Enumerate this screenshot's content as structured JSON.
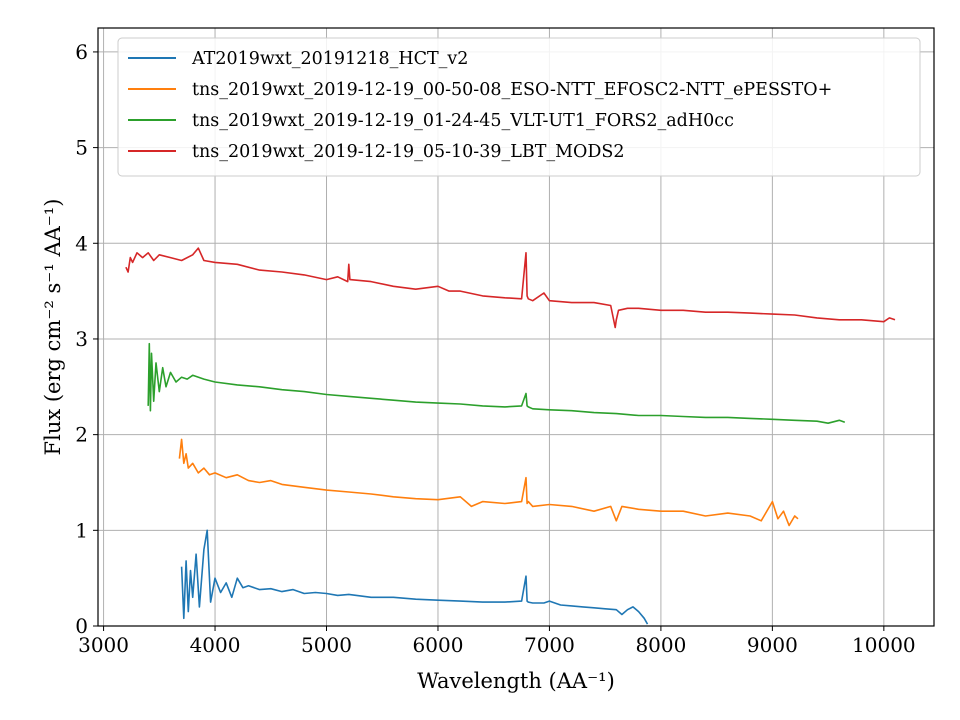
{
  "chart_data": {
    "type": "line",
    "xlabel": "Wavelength (AA⁻¹)",
    "ylabel": "Flux (erg cm⁻² s⁻¹ AA⁻¹)",
    "xlim": [
      2950,
      10450
    ],
    "ylim": [
      0,
      6.25
    ],
    "xticks": [
      3000,
      4000,
      5000,
      6000,
      7000,
      8000,
      9000,
      10000
    ],
    "yticks": [
      0,
      1,
      2,
      3,
      4,
      5,
      6
    ],
    "grid": true,
    "legend_position": "top-left",
    "series": [
      {
        "name": "AT2019wxt_20191218_HCT_v2",
        "color": "#1f77b4",
        "x": [
          3700,
          3720,
          3740,
          3760,
          3780,
          3800,
          3830,
          3860,
          3900,
          3930,
          3960,
          4000,
          4050,
          4100,
          4150,
          4200,
          4250,
          4300,
          4400,
          4500,
          4600,
          4700,
          4800,
          4900,
          5000,
          5100,
          5200,
          5400,
          5600,
          5800,
          6000,
          6200,
          6400,
          6600,
          6750,
          6790,
          6800,
          6810,
          6850,
          6950,
          7000,
          7100,
          7200,
          7300,
          7400,
          7500,
          7600,
          7650,
          7700,
          7750,
          7800,
          7850,
          7880
        ],
        "y": [
          0.62,
          0.08,
          0.68,
          0.15,
          0.58,
          0.3,
          0.75,
          0.2,
          0.8,
          1.0,
          0.25,
          0.5,
          0.35,
          0.45,
          0.3,
          0.5,
          0.4,
          0.42,
          0.38,
          0.39,
          0.36,
          0.38,
          0.34,
          0.35,
          0.34,
          0.32,
          0.33,
          0.3,
          0.3,
          0.28,
          0.27,
          0.26,
          0.25,
          0.25,
          0.26,
          0.52,
          0.26,
          0.25,
          0.24,
          0.24,
          0.26,
          0.22,
          0.21,
          0.2,
          0.19,
          0.18,
          0.17,
          0.12,
          0.17,
          0.2,
          0.15,
          0.08,
          0.02
        ]
      },
      {
        "name": "tns_2019wxt_2019-12-19_00-50-08_ESO-NTT_EFOSC2-NTT_ePESSTO+",
        "color": "#ff7f0e",
        "x": [
          3680,
          3700,
          3720,
          3740,
          3760,
          3800,
          3850,
          3900,
          3950,
          4000,
          4100,
          4200,
          4300,
          4400,
          4500,
          4600,
          4800,
          5000,
          5200,
          5400,
          5600,
          5800,
          6000,
          6200,
          6300,
          6400,
          6600,
          6750,
          6790,
          6800,
          6810,
          6850,
          7000,
          7200,
          7400,
          7550,
          7600,
          7650,
          7800,
          8000,
          8200,
          8400,
          8600,
          8800,
          8900,
          9000,
          9050,
          9100,
          9150,
          9200,
          9230
        ],
        "y": [
          1.75,
          1.95,
          1.7,
          1.8,
          1.65,
          1.7,
          1.6,
          1.65,
          1.58,
          1.6,
          1.55,
          1.58,
          1.52,
          1.5,
          1.52,
          1.48,
          1.45,
          1.42,
          1.4,
          1.38,
          1.35,
          1.33,
          1.32,
          1.35,
          1.25,
          1.3,
          1.28,
          1.3,
          1.55,
          1.28,
          1.3,
          1.25,
          1.27,
          1.25,
          1.2,
          1.25,
          1.1,
          1.25,
          1.22,
          1.2,
          1.2,
          1.15,
          1.18,
          1.15,
          1.1,
          1.3,
          1.12,
          1.2,
          1.05,
          1.15,
          1.12
        ]
      },
      {
        "name": "tns_2019wxt_2019-12-19_01-24-45_VLT-UT1_FORS2_adH0cc",
        "color": "#2ca02c",
        "x": [
          3400,
          3410,
          3420,
          3430,
          3450,
          3470,
          3500,
          3530,
          3560,
          3600,
          3650,
          3700,
          3750,
          3800,
          3900,
          4000,
          4200,
          4400,
          4600,
          4800,
          5000,
          5200,
          5400,
          5600,
          5800,
          6000,
          6200,
          6400,
          6600,
          6750,
          6790,
          6800,
          6810,
          6850,
          7000,
          7200,
          7400,
          7600,
          7800,
          8000,
          8200,
          8400,
          8600,
          8800,
          9000,
          9200,
          9400,
          9500,
          9600,
          9650
        ],
        "y": [
          2.3,
          2.95,
          2.25,
          2.85,
          2.35,
          2.75,
          2.45,
          2.7,
          2.5,
          2.65,
          2.55,
          2.6,
          2.58,
          2.62,
          2.58,
          2.55,
          2.52,
          2.5,
          2.47,
          2.45,
          2.42,
          2.4,
          2.38,
          2.36,
          2.34,
          2.33,
          2.32,
          2.3,
          2.29,
          2.3,
          2.43,
          2.3,
          2.29,
          2.27,
          2.26,
          2.25,
          2.23,
          2.22,
          2.2,
          2.2,
          2.19,
          2.18,
          2.18,
          2.17,
          2.16,
          2.15,
          2.14,
          2.12,
          2.15,
          2.13
        ]
      },
      {
        "name": "tns_2019wxt_2019-12-19_05-10-39_LBT_MODS2",
        "color": "#d62728",
        "x": [
          3200,
          3220,
          3240,
          3260,
          3300,
          3350,
          3400,
          3450,
          3500,
          3600,
          3700,
          3800,
          3850,
          3900,
          4000,
          4200,
          4400,
          4600,
          4800,
          5000,
          5100,
          5190,
          5200,
          5210,
          5400,
          5600,
          5800,
          6000,
          6100,
          6200,
          6400,
          6600,
          6750,
          6790,
          6800,
          6810,
          6850,
          6950,
          7000,
          7200,
          7400,
          7550,
          7590,
          7600,
          7620,
          7700,
          7800,
          8000,
          8200,
          8400,
          8600,
          8800,
          9000,
          9200,
          9400,
          9600,
          9800,
          10000,
          10050,
          10100
        ],
        "y": [
          3.75,
          3.7,
          3.85,
          3.8,
          3.9,
          3.85,
          3.9,
          3.82,
          3.88,
          3.85,
          3.82,
          3.88,
          3.95,
          3.82,
          3.8,
          3.78,
          3.72,
          3.7,
          3.67,
          3.62,
          3.65,
          3.6,
          3.78,
          3.62,
          3.6,
          3.55,
          3.52,
          3.55,
          3.5,
          3.5,
          3.45,
          3.43,
          3.42,
          3.9,
          3.45,
          3.42,
          3.4,
          3.48,
          3.4,
          3.38,
          3.38,
          3.35,
          3.12,
          3.2,
          3.3,
          3.32,
          3.32,
          3.3,
          3.3,
          3.28,
          3.28,
          3.27,
          3.26,
          3.25,
          3.22,
          3.2,
          3.2,
          3.18,
          3.22,
          3.2
        ]
      }
    ]
  }
}
